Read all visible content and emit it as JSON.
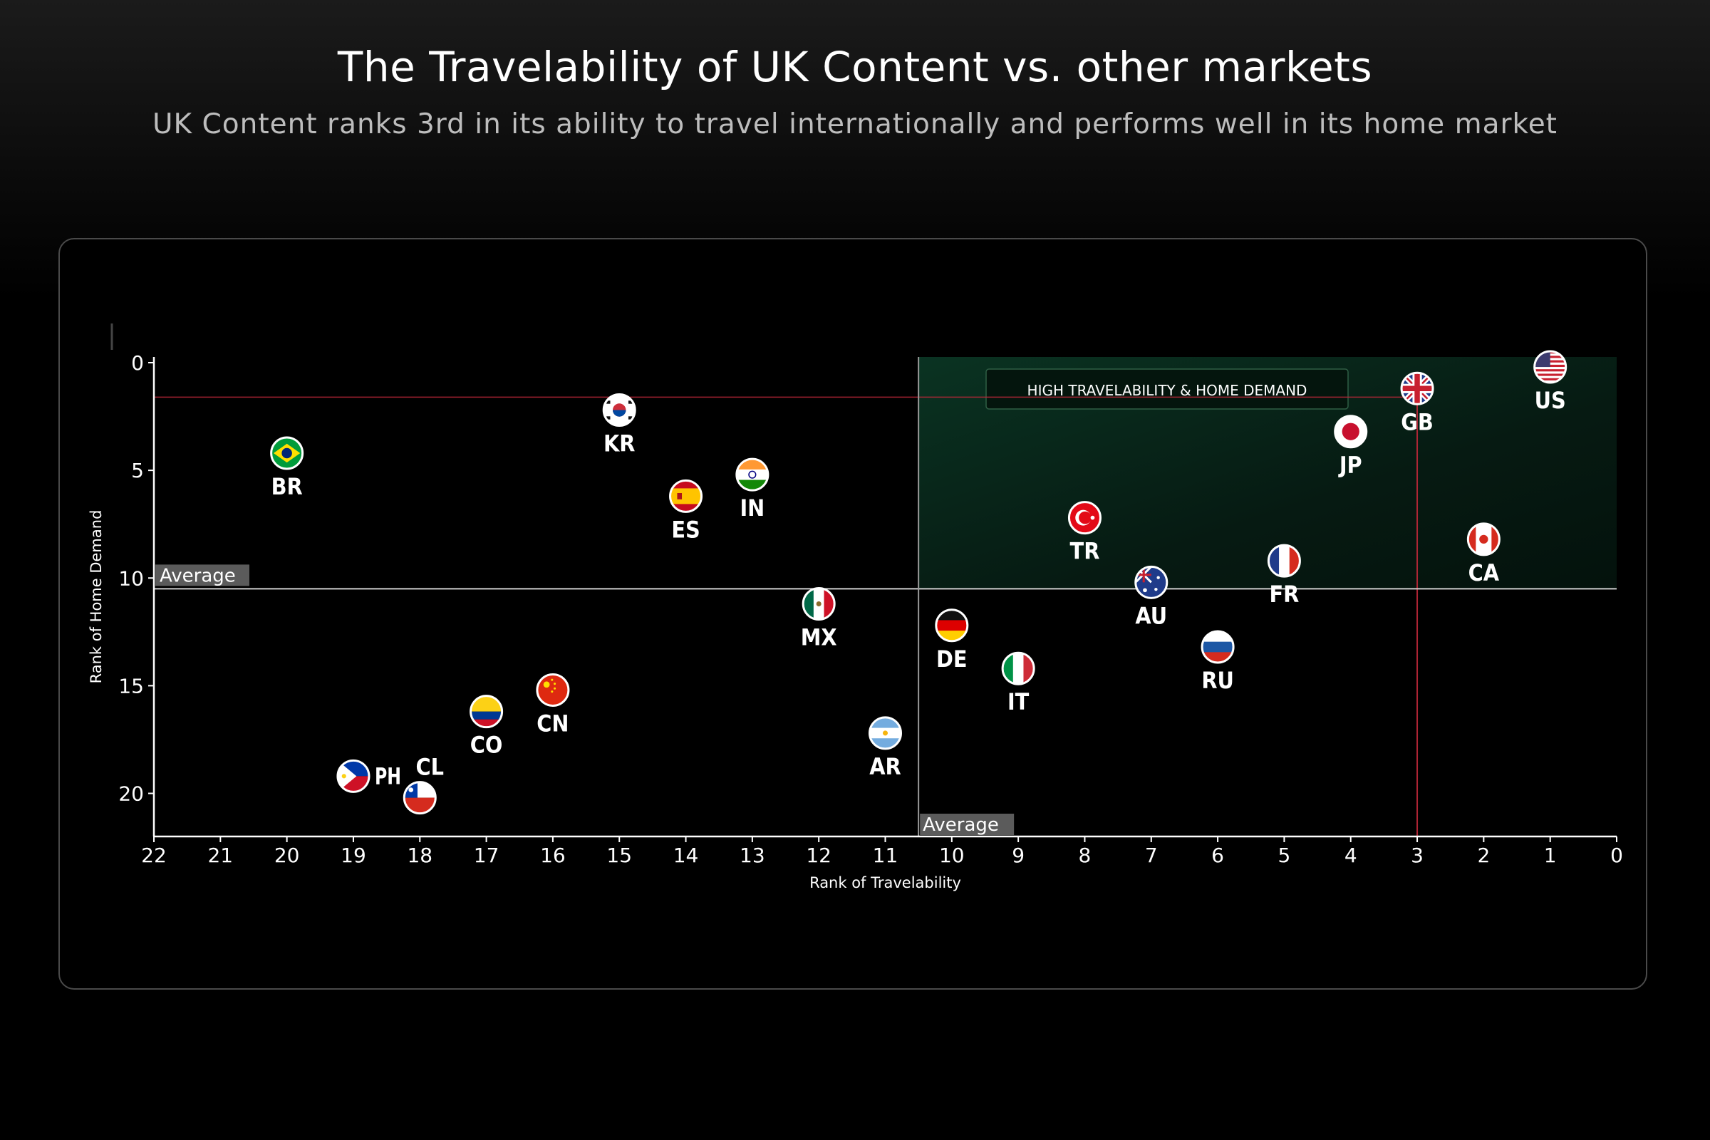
{
  "page": {
    "title": "The Travelability of UK Content vs. other markets",
    "subtitle": "UK Content ranks 3rd in its ability to travel internationally and performs well in its home market"
  },
  "chart_data": {
    "type": "scatter",
    "xlabel": "Rank of Travelability",
    "ylabel": "Rank of Home Demand",
    "xlim": [
      22,
      0
    ],
    "ylim": [
      0,
      22
    ],
    "x_reversed": true,
    "y_reversed": true,
    "x_ticks": [
      22,
      21,
      20,
      19,
      18,
      17,
      16,
      15,
      14,
      13,
      12,
      11,
      10,
      9,
      8,
      7,
      6,
      5,
      4,
      3,
      2,
      1,
      0
    ],
    "y_ticks": [
      0,
      5,
      10,
      15,
      20
    ],
    "average_x": 10.5,
    "average_y": 10.5,
    "average_label": "Average",
    "quadrant_label": "HIGH TRAVELABILITY & HOME DEMAND",
    "reference_lines": {
      "highlight_x": 3,
      "highlight_y": 1.6,
      "color": "#c0283a"
    },
    "grid": false,
    "points": [
      {
        "code": "US",
        "x": 1,
        "y": 0.2,
        "flag": "us-flag"
      },
      {
        "code": "GB",
        "x": 3,
        "y": 1.2,
        "flag": "gb-flag"
      },
      {
        "code": "JP",
        "x": 4,
        "y": 3.2,
        "flag": "jp-flag"
      },
      {
        "code": "CA",
        "x": 2,
        "y": 8.2,
        "flag": "ca-flag"
      },
      {
        "code": "FR",
        "x": 5,
        "y": 9.2,
        "flag": "fr-flag"
      },
      {
        "code": "AU",
        "x": 7,
        "y": 10.2,
        "flag": "au-flag"
      },
      {
        "code": "TR",
        "x": 8,
        "y": 7.2,
        "flag": "tr-flag"
      },
      {
        "code": "RU",
        "x": 6,
        "y": 13.2,
        "flag": "ru-flag"
      },
      {
        "code": "IT",
        "x": 9,
        "y": 14.2,
        "flag": "it-flag"
      },
      {
        "code": "DE",
        "x": 10,
        "y": 12.2,
        "flag": "de-flag"
      },
      {
        "code": "AR",
        "x": 11,
        "y": 17.2,
        "flag": "ar-flag"
      },
      {
        "code": "MX",
        "x": 12,
        "y": 11.2,
        "flag": "mx-flag"
      },
      {
        "code": "IN",
        "x": 13,
        "y": 5.2,
        "flag": "in-flag"
      },
      {
        "code": "ES",
        "x": 14,
        "y": 6.2,
        "flag": "es-flag"
      },
      {
        "code": "KR",
        "x": 15,
        "y": 2.2,
        "flag": "kr-flag"
      },
      {
        "code": "CN",
        "x": 16,
        "y": 15.2,
        "flag": "cn-flag"
      },
      {
        "code": "CO",
        "x": 17,
        "y": 16.2,
        "flag": "co-flag"
      },
      {
        "code": "CL",
        "x": 18,
        "y": 20.2,
        "flag": "cl-flag"
      },
      {
        "code": "PH",
        "x": 19,
        "y": 19.2,
        "flag": "ph-flag"
      },
      {
        "code": "BR",
        "x": 20,
        "y": 4.2,
        "flag": "br-flag"
      }
    ],
    "colors": {
      "axis": "#ffffff",
      "average_line": "#cfcfcf",
      "quadrant_fill": "#0c2a1c",
      "quadrant_border": "#2f5e45",
      "average_tag_bg": "#6b6b6b",
      "average_tag_text": "#9a9a9a"
    }
  }
}
